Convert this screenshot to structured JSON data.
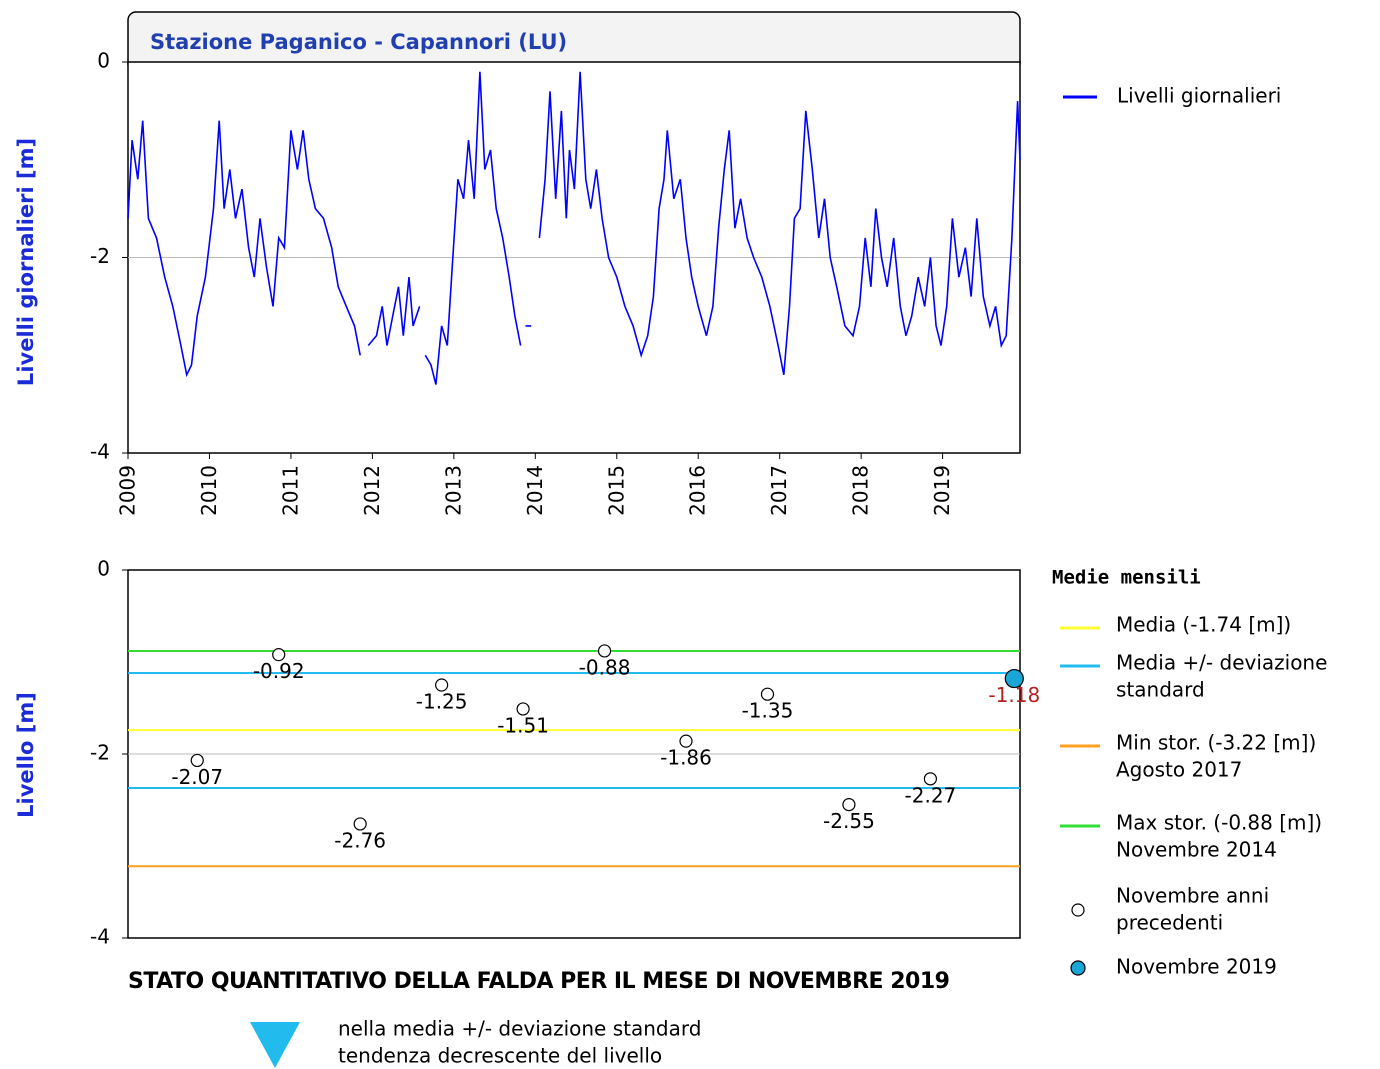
{
  "chart_data": [
    {
      "type": "line",
      "title": "Stazione Paganico - Capannori (LU)",
      "ylabel": "Livelli giornalieri [m]",
      "x": [
        2009.0,
        2009.05,
        2009.12,
        2009.18,
        2009.25,
        2009.35,
        2009.45,
        2009.55,
        2009.65,
        2009.72,
        2009.78,
        2009.85,
        2009.95,
        2010.05,
        2010.12,
        2010.18,
        2010.25,
        2010.32,
        2010.4,
        2010.48,
        2010.55,
        2010.62,
        2010.7,
        2010.78,
        2010.85,
        2010.92,
        2011.0,
        2011.08,
        2011.15,
        2011.22,
        2011.3,
        2011.4,
        2011.5,
        2011.58,
        2011.68,
        2011.78,
        2011.85,
        2011.88,
        2011.95,
        2012.05,
        2012.12,
        2012.18,
        2012.25,
        2012.32,
        2012.38,
        2012.45,
        2012.5,
        2012.58,
        2012.6,
        2012.65,
        2012.72,
        2012.78,
        2012.85,
        2012.92,
        2012.98,
        2013.05,
        2013.12,
        2013.18,
        2013.25,
        2013.32,
        2013.38,
        2013.45,
        2013.52,
        2013.6,
        2013.68,
        2013.75,
        2013.82,
        2013.85,
        2013.88,
        2013.95,
        2013.98,
        2014.05,
        2014.12,
        2014.18,
        2014.25,
        2014.32,
        2014.38,
        2014.42,
        2014.48,
        2014.55,
        2014.62,
        2014.68,
        2014.75,
        2014.82,
        2014.9,
        2015.0,
        2015.1,
        2015.2,
        2015.3,
        2015.38,
        2015.45,
        2015.52,
        2015.58,
        2015.62,
        2015.7,
        2015.78,
        2015.85,
        2015.92,
        2016.0,
        2016.1,
        2016.18,
        2016.25,
        2016.32,
        2016.38,
        2016.45,
        2016.52,
        2016.6,
        2016.68,
        2016.78,
        2016.88,
        2016.98,
        2017.05,
        2017.12,
        2017.18,
        2017.25,
        2017.32,
        2017.4,
        2017.48,
        2017.55,
        2017.62,
        2017.7,
        2017.8,
        2017.9,
        2017.98,
        2018.05,
        2018.12,
        2018.18,
        2018.25,
        2018.32,
        2018.4,
        2018.48,
        2018.55,
        2018.62,
        2018.7,
        2018.78,
        2018.85,
        2018.92,
        2018.98,
        2019.05,
        2019.12,
        2019.2,
        2019.28,
        2019.35,
        2019.42,
        2019.5,
        2019.58,
        2019.65,
        2019.72,
        2019.78,
        2019.85,
        2019.92,
        2019.95
      ],
      "series": [
        {
          "name": "Livelli giornalieri",
          "color": "#0000ff",
          "values": [
            -1.6,
            -0.8,
            -1.2,
            -0.6,
            -1.6,
            -1.8,
            -2.2,
            -2.5,
            -2.9,
            -3.2,
            -3.1,
            -2.6,
            -2.2,
            -1.5,
            -0.6,
            -1.5,
            -1.1,
            -1.6,
            -1.3,
            -1.9,
            -2.2,
            -1.6,
            -2.1,
            -2.5,
            -1.8,
            -1.9,
            -0.7,
            -1.1,
            -0.7,
            -1.2,
            -1.5,
            -1.6,
            -1.9,
            -2.3,
            -2.5,
            -2.7,
            -3.0,
            null,
            -2.9,
            -2.8,
            -2.5,
            -2.9,
            -2.6,
            -2.3,
            -2.8,
            -2.2,
            -2.7,
            -2.5,
            null,
            -3.0,
            -3.1,
            -3.3,
            -2.7,
            -2.9,
            -2.1,
            -1.2,
            -1.4,
            -0.8,
            -1.4,
            -0.1,
            -1.1,
            -0.9,
            -1.5,
            -1.8,
            -2.2,
            -2.6,
            -2.9,
            null,
            -2.7,
            -2.7,
            null,
            -1.8,
            -1.2,
            -0.3,
            -1.4,
            -0.5,
            -1.6,
            -0.9,
            -1.3,
            -0.1,
            -1.2,
            -1.5,
            -1.1,
            -1.6,
            -2.0,
            -2.2,
            -2.5,
            -2.7,
            -3.0,
            -2.8,
            -2.4,
            -1.5,
            -1.2,
            -0.7,
            -1.4,
            -1.2,
            -1.8,
            -2.2,
            -2.5,
            -2.8,
            -2.5,
            -1.7,
            -1.1,
            -0.7,
            -1.7,
            -1.4,
            -1.8,
            -2.0,
            -2.2,
            -2.5,
            -2.9,
            -3.2,
            -2.5,
            -1.6,
            -1.5,
            -0.5,
            -1.1,
            -1.8,
            -1.4,
            -2.0,
            -2.3,
            -2.7,
            -2.8,
            -2.5,
            -1.8,
            -2.3,
            -1.5,
            -2.0,
            -2.3,
            -1.8,
            -2.5,
            -2.8,
            -2.6,
            -2.2,
            -2.5,
            -2.0,
            -2.7,
            -2.9,
            -2.5,
            -1.6,
            -2.2,
            -1.9,
            -2.4,
            -1.6,
            -2.4,
            -2.7,
            -2.5,
            -2.9,
            -2.8,
            -1.8,
            -0.4,
            -1.0
          ]
        }
      ],
      "xlim": [
        2009,
        2019.95
      ],
      "xticks": [
        2009,
        2010,
        2011,
        2012,
        2013,
        2014,
        2015,
        2016,
        2017,
        2018,
        2019
      ],
      "ylim": [
        -4,
        0
      ],
      "yticks": [
        -4,
        -2,
        0
      ],
      "grid": true
    },
    {
      "type": "scatter",
      "ylabel": "Livello [m]",
      "xlim": [
        2009,
        2019.95
      ],
      "ylim": [
        -4,
        0
      ],
      "yticks": [
        -4,
        -2,
        0
      ],
      "grid": true,
      "legend_title": "Medie mensili",
      "reference_lines": [
        {
          "label": [
            "Media (-1.74 [m])"
          ],
          "color": "#ffff33",
          "values": [
            -1.74
          ]
        },
        {
          "label": [
            "Media +/- deviazione",
            "standard"
          ],
          "color": "#22bbee",
          "values": [
            -1.12,
            -2.37
          ]
        },
        {
          "label": [
            "Min stor. (-3.22 [m])",
            "Agosto 2017"
          ],
          "color": "#ffa020",
          "values": [
            -3.22
          ]
        },
        {
          "label": [
            "Max stor. (-0.88 [m])",
            "Novembre 2014"
          ],
          "color": "#33dd33",
          "values": [
            -0.88
          ]
        }
      ],
      "series": [
        {
          "name": [
            "Novembre anni",
            "precedenti"
          ],
          "color": "#ffffff",
          "label_color": "#000000",
          "x": [
            2009.85,
            2010.85,
            2011.85,
            2012.85,
            2013.85,
            2014.85,
            2015.85,
            2016.85,
            2017.85,
            2018.85
          ],
          "values": [
            -2.07,
            -0.92,
            -2.76,
            -1.25,
            -1.51,
            -0.88,
            -1.86,
            -1.35,
            -2.55,
            -2.27
          ]
        },
        {
          "name": [
            "Novembre 2019"
          ],
          "color": "#1aa7d8",
          "label_color": "#b22222",
          "x": [
            2019.88
          ],
          "values": [
            -1.18
          ]
        }
      ],
      "status": {
        "title": "STATO QUANTITATIVO DELLA FALDA PER IL MESE DI NOVEMBRE 2019",
        "description": [
          "nella media +/- deviazione standard",
          "tendenza decrescente del livello"
        ],
        "color": "#22bbee"
      }
    }
  ]
}
